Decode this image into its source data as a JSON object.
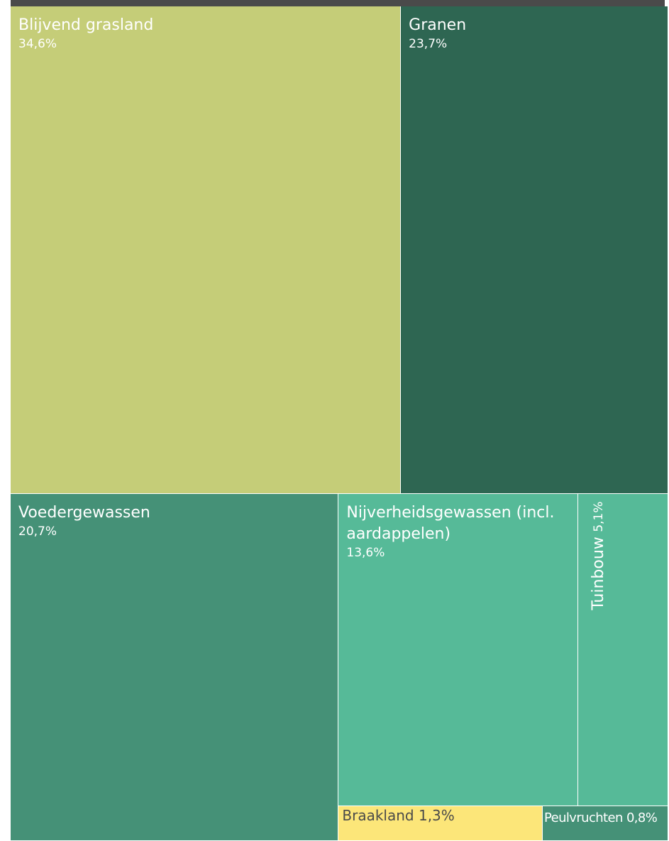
{
  "chart_data": {
    "type": "treemap",
    "title": "",
    "items": [
      {
        "name": "Blijvend grasland",
        "value": 34.6,
        "label": "34,6%",
        "color": "#c5cd78"
      },
      {
        "name": "Granen",
        "value": 23.7,
        "label": "23,7%",
        "color": "#2e6652"
      },
      {
        "name": "Voedergewassen",
        "value": 20.7,
        "label": "20,7%",
        "color": "#459177"
      },
      {
        "name": "Nijverheidsgewassen (incl. aardappelen)",
        "value": 13.6,
        "label": "13,6%",
        "color": "#56ba98"
      },
      {
        "name": "Tuinbouw",
        "value": 5.1,
        "label": "5,1%",
        "color": "#56ba98"
      },
      {
        "name": "Braakland",
        "value": 1.3,
        "label": "1,3%",
        "color": "#fce679"
      },
      {
        "name": "Peulvruchten",
        "value": 0.8,
        "label": "0,8%",
        "color": "#459177"
      }
    ]
  }
}
